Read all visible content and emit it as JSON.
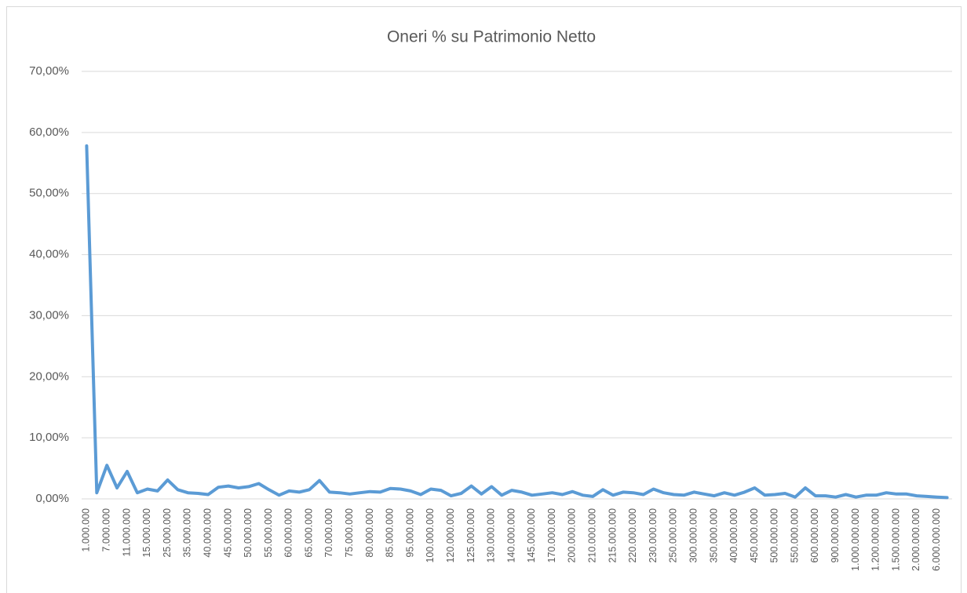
{
  "chart_data": {
    "type": "line",
    "title": "Oneri % su Patrimonio Netto",
    "categories": [
      "1.000.000",
      null,
      "7.000.000",
      null,
      "11.000.000",
      null,
      "15.000.000",
      null,
      "25.000.000",
      null,
      "35.000.000",
      null,
      "40.000.000",
      null,
      "45.000.000",
      null,
      "50.000.000",
      null,
      "55.000.000",
      null,
      "60.000.000",
      null,
      "65.000.000",
      null,
      "70.000.000",
      null,
      "75.000.000",
      null,
      "80.000.000",
      null,
      "85.000.000",
      null,
      "95.000.000",
      null,
      "100.000.000",
      null,
      "120.000.000",
      null,
      "125.000.000",
      null,
      "130.000.000",
      null,
      "140.000.000",
      null,
      "145.000.000",
      null,
      "170.000.000",
      null,
      "200.000.000",
      null,
      "210.000.000",
      null,
      "215.000.000",
      null,
      "220.000.000",
      null,
      "230.000.000",
      null,
      "250.000.000",
      null,
      "300.000.000",
      null,
      "350.000.000",
      null,
      "400.000.000",
      null,
      "450.000.000",
      null,
      "500.000.000",
      null,
      "550.000.000",
      null,
      "600.000.000",
      null,
      "900.000.000",
      null,
      "1.000.000.000",
      null,
      "1.200.000.000",
      null,
      "1.500.000.000",
      null,
      "2.000.000.000",
      null,
      "6.000.000.000",
      null
    ],
    "series": [
      {
        "name": "Oneri % su Patrimonio Netto",
        "color": "#5b9bd5",
        "values": [
          57.8,
          1.0,
          5.5,
          1.8,
          4.5,
          1.0,
          1.6,
          1.3,
          3.1,
          1.5,
          1.0,
          0.9,
          0.7,
          1.9,
          2.1,
          1.8,
          2.0,
          2.5,
          1.5,
          0.6,
          1.3,
          1.1,
          1.5,
          3.0,
          1.1,
          1.0,
          0.8,
          1.0,
          1.2,
          1.1,
          1.7,
          1.6,
          1.3,
          0.7,
          1.6,
          1.4,
          0.5,
          0.9,
          2.1,
          0.8,
          2.0,
          0.6,
          1.4,
          1.1,
          0.6,
          0.8,
          1.0,
          0.7,
          1.2,
          0.6,
          0.4,
          1.5,
          0.6,
          1.1,
          1.0,
          0.7,
          1.6,
          1.0,
          0.7,
          0.6,
          1.1,
          0.8,
          0.5,
          1.0,
          0.6,
          1.1,
          1.8,
          0.6,
          0.7,
          0.9,
          0.3,
          1.8,
          0.5,
          0.5,
          0.3,
          0.7,
          0.3,
          0.6,
          0.6,
          1.0,
          0.8,
          0.8,
          0.5,
          0.4,
          0.3,
          0.2
        ]
      }
    ],
    "ylim": [
      0,
      70
    ],
    "yticks": [
      {
        "value": 0,
        "label": "0,00%"
      },
      {
        "value": 10,
        "label": "10,00%"
      },
      {
        "value": 20,
        "label": "20,00%"
      },
      {
        "value": 30,
        "label": "30,00%"
      },
      {
        "value": 40,
        "label": "40,00%"
      },
      {
        "value": 50,
        "label": "50,00%"
      },
      {
        "value": 60,
        "label": "60,00%"
      },
      {
        "value": 70,
        "label": "70,00%"
      }
    ],
    "grid": true
  }
}
